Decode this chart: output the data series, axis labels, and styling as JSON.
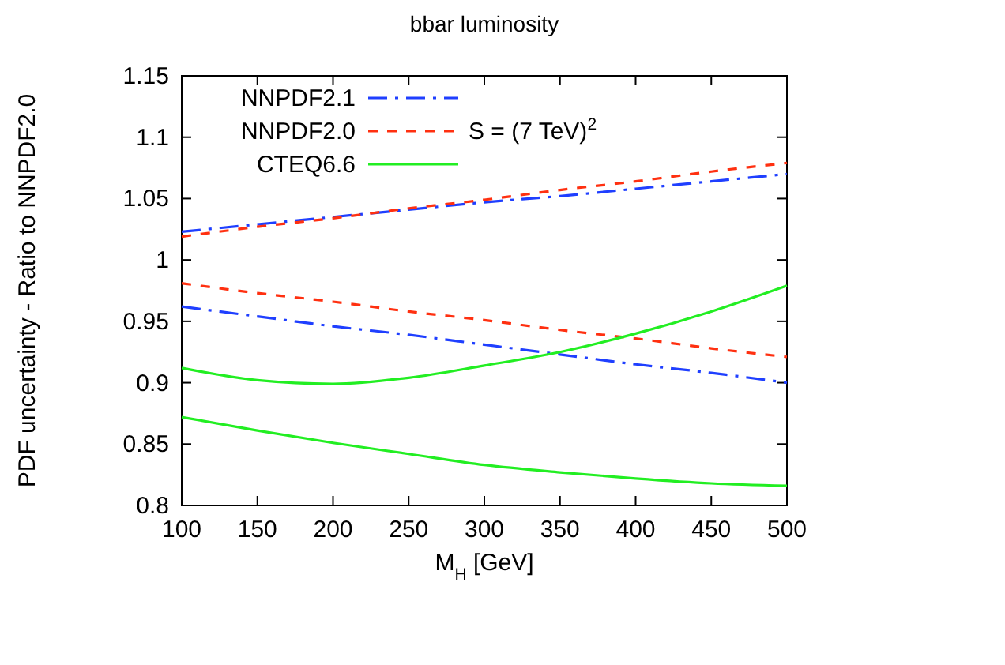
{
  "chart_data": {
    "type": "line",
    "title": "bbar luminosity",
    "xlabel": "M$_{H}$ [GeV]",
    "ylabel": "PDF uncertainty - Ratio to NNPDF2.0",
    "x": [
      100,
      150,
      200,
      250,
      300,
      350,
      400,
      450,
      500
    ],
    "series": [
      {
        "name": "NNPDF2.1",
        "color": "#1f3fff",
        "line_style": "dashdot",
        "values": [
          1.023,
          1.029,
          1.035,
          1.041,
          1.047,
          1.052,
          1.058,
          1.064,
          1.07
        ]
      },
      {
        "color": "#1f3fff",
        "line_style": "dashdot",
        "values": [
          0.962,
          0.954,
          0.946,
          0.939,
          0.931,
          0.923,
          0.915,
          0.908,
          0.9
        ]
      },
      {
        "name": "NNPDF2.0",
        "color": "#ff3010",
        "line_style": "dashed",
        "values": [
          1.019,
          1.027,
          1.034,
          1.042,
          1.049,
          1.057,
          1.064,
          1.072,
          1.079
        ]
      },
      {
        "color": "#ff3010",
        "line_style": "dashed",
        "values": [
          0.981,
          0.973,
          0.966,
          0.958,
          0.951,
          0.943,
          0.936,
          0.928,
          0.921
        ]
      },
      {
        "name": "CTEQ6.6",
        "color": "#22ee22",
        "line_style": "solid",
        "values": [
          0.912,
          0.902,
          0.899,
          0.904,
          0.914,
          0.925,
          0.94,
          0.958,
          0.979
        ]
      },
      {
        "color": "#22ee22",
        "line_style": "solid",
        "values": [
          0.872,
          0.861,
          0.851,
          0.842,
          0.833,
          0.827,
          0.822,
          0.818,
          0.816
        ]
      }
    ],
    "annotations": [
      "S = (7 TeV)$^{2}$"
    ],
    "xlim": [
      100,
      500
    ],
    "xticks": [
      100,
      150,
      200,
      250,
      300,
      350,
      400,
      450,
      500
    ],
    "ylim": [
      0.8,
      1.15
    ],
    "yticks": [
      {
        "value": 0.8,
        "label": "0.8"
      },
      0.85,
      0.9,
      0.95,
      1,
      1.05,
      1.1,
      1.15
    ],
    "legend": "top left",
    "grid": false
  }
}
